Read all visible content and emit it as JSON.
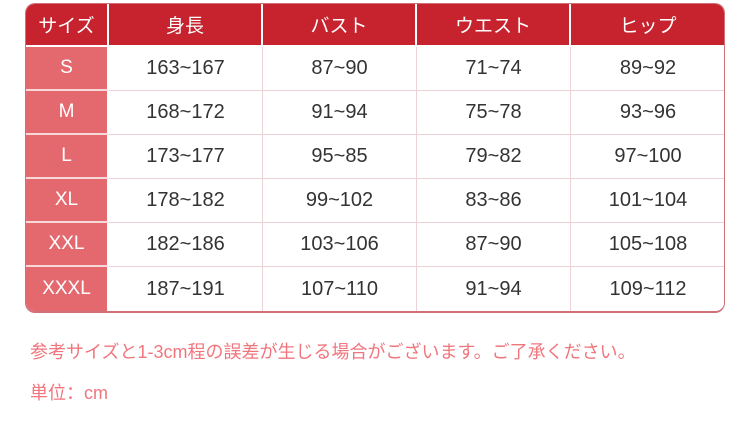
{
  "table": {
    "headers": [
      "サイズ",
      "身長",
      "バスト",
      "ウエスト",
      "ヒップ"
    ],
    "rows": [
      {
        "size": "S",
        "values": [
          "163~167",
          "87~90",
          "71~74",
          "89~92"
        ]
      },
      {
        "size": "M",
        "values": [
          "168~172",
          "91~94",
          "75~78",
          "93~96"
        ]
      },
      {
        "size": "L",
        "values": [
          "173~177",
          "95~85",
          "79~82",
          "97~100"
        ]
      },
      {
        "size": "XL",
        "values": [
          "178~182",
          "99~102",
          "83~86",
          "101~104"
        ]
      },
      {
        "size": "XXL",
        "values": [
          "182~186",
          "103~106",
          "87~90",
          "105~108"
        ]
      },
      {
        "size": "XXXL",
        "values": [
          "187~191",
          "107~110",
          "91~94",
          "109~112"
        ]
      }
    ]
  },
  "notes": {
    "line1": "参考サイズと1-3cm程の誤差が生じる場合がございます。ご了承ください。",
    "line2": "単位：cm"
  },
  "colors": {
    "header_bg": "#c7232e",
    "size_column_bg": "#e3696f",
    "grid_line": "#ecd2d4",
    "outer_border": "#cf7177",
    "note_text": "#f0767e",
    "body_text": "#333333"
  }
}
